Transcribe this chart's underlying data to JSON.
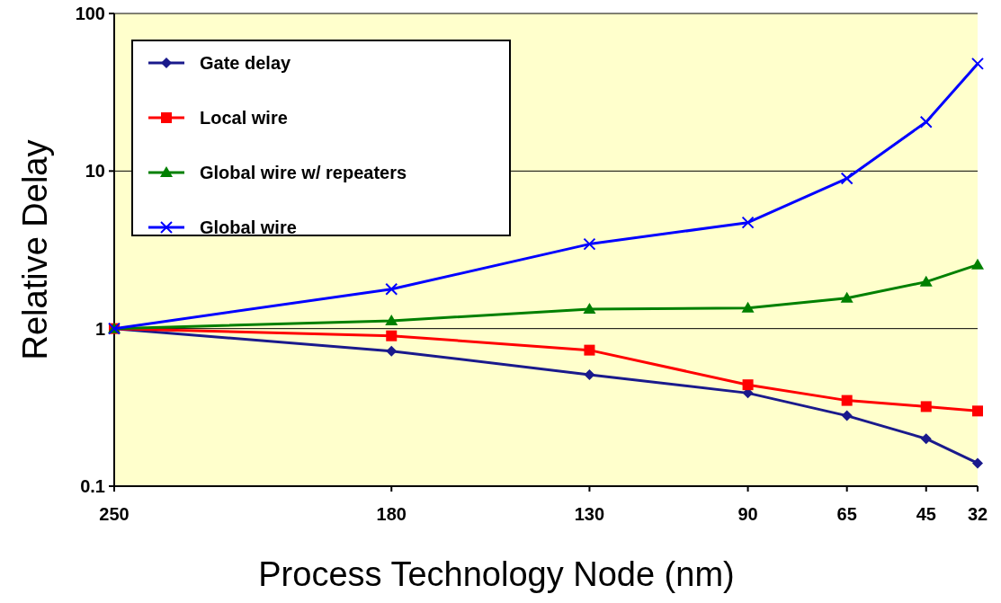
{
  "chart_data": {
    "type": "line",
    "xlabel": "Process Technology Node (nm)",
    "ylabel": "Relative Delay",
    "x": [
      250,
      180,
      130,
      90,
      65,
      45,
      32
    ],
    "xlim": [
      250,
      32
    ],
    "xticks": [
      250,
      180,
      130,
      90,
      65,
      45,
      32
    ],
    "ylim": [
      0.1,
      100
    ],
    "yticks": [
      0.1,
      1,
      10,
      100
    ],
    "log": "y",
    "grid": "y",
    "legend": "top left",
    "series": [
      {
        "name": "Gate delay",
        "color": "#1a1a8c",
        "marker": "diamond",
        "values": [
          1,
          0.72,
          0.51,
          0.39,
          0.28,
          0.2,
          0.14
        ]
      },
      {
        "name": "Local wire",
        "color": "#ff0000",
        "marker": "square",
        "values": [
          1,
          0.9,
          0.73,
          0.44,
          0.35,
          0.32,
          0.3
        ]
      },
      {
        "name": "Global wire w/  repeaters",
        "color": "#008000",
        "marker": "triangle",
        "values": [
          1,
          1.12,
          1.33,
          1.35,
          1.56,
          1.98,
          2.54
        ]
      },
      {
        "name": "Global wire",
        "color": "#0000ff",
        "marker": "cross",
        "values": [
          1,
          1.78,
          3.44,
          4.71,
          8.98,
          20.5,
          48
        ]
      }
    ]
  }
}
